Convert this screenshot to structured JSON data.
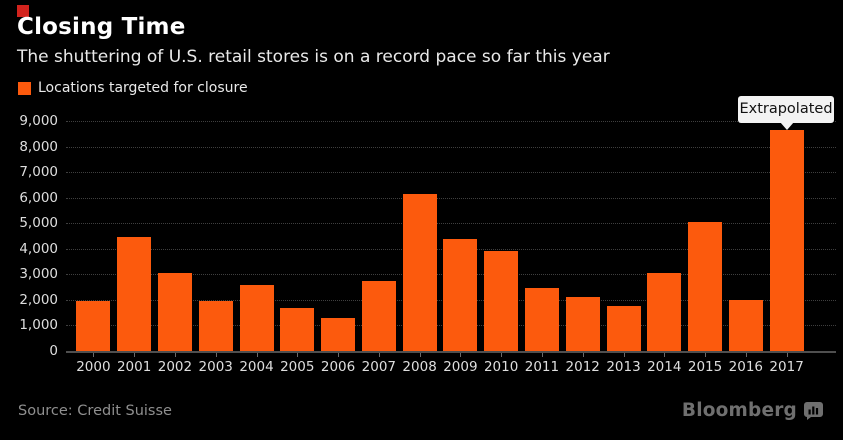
{
  "header": {
    "title": "Closing Time",
    "subtitle": "The shuttering of U.S. retail stores is on a record pace so far this year"
  },
  "legend": {
    "label": "Locations targeted for closure"
  },
  "callout": {
    "label": "Extrapolated"
  },
  "footer": {
    "source": "Source: Credit Suisse",
    "brand": "Bloomberg"
  },
  "colors": {
    "background": "#000000",
    "bar": "#fc5a0d",
    "accent_red": "#d2231d",
    "callout_bg": "#f3f3f3",
    "gridline": "#3f3f3f",
    "axis": "#4f4f4f",
    "tick_text": "#dedede"
  },
  "chart_data": {
    "type": "bar",
    "title": "Closing Time",
    "subtitle": "The shuttering of U.S. retail stores is on a record pace so far this year",
    "xlabel": "",
    "ylabel": "",
    "categories": [
      "2000",
      "2001",
      "2002",
      "2003",
      "2004",
      "2005",
      "2006",
      "2007",
      "2008",
      "2009",
      "2010",
      "2011",
      "2012",
      "2013",
      "2014",
      "2015",
      "2016",
      "2017"
    ],
    "values": [
      1950,
      4450,
      3050,
      1950,
      2600,
      1700,
      1300,
      2750,
      6150,
      4400,
      3900,
      2450,
      2100,
      1750,
      3050,
      5050,
      2000,
      8650
    ],
    "series_name": "Locations targeted for closure",
    "ylim": [
      0,
      9000
    ],
    "ytick_interval": 1000,
    "ytick_labels": [
      "0",
      "1,000",
      "2,000",
      "3,000",
      "4,000",
      "5,000",
      "6,000",
      "7,000",
      "8,000",
      "9,000"
    ],
    "grid": "horizontal-dotted",
    "legend_position": "top-left",
    "bar_color": "#fc5a0d",
    "annotation": {
      "category": "2017",
      "label": "Extrapolated"
    }
  }
}
